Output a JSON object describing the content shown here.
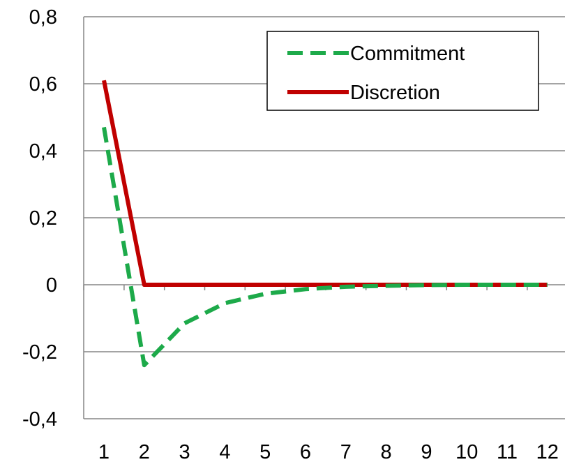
{
  "chart_data": {
    "type": "line",
    "title": "",
    "xlabel": "",
    "ylabel": "",
    "categories": [
      "1",
      "2",
      "3",
      "4",
      "5",
      "6",
      "7",
      "8",
      "9",
      "10",
      "11",
      "12"
    ],
    "x": [
      1,
      2,
      3,
      4,
      5,
      6,
      7,
      8,
      9,
      10,
      11,
      12
    ],
    "ylim": [
      -0.4,
      0.8
    ],
    "yticks": [
      -0.4,
      -0.2,
      0,
      0.2,
      0.4,
      0.6,
      0.8
    ],
    "ytick_labels": [
      "-0,4",
      "-0,2",
      "0",
      "0,2",
      "0,4",
      "0,6",
      "0,8"
    ],
    "grid": true,
    "legend_position": "top-right",
    "series": [
      {
        "name": "Commitment",
        "color": "#1daa4a",
        "style": "dashed",
        "values": [
          0.47,
          -0.24,
          -0.115,
          -0.055,
          -0.027,
          -0.013,
          -0.006,
          -0.003,
          -0.001,
          0,
          0,
          0
        ]
      },
      {
        "name": "Discretion",
        "color": "#c00000",
        "style": "solid",
        "values": [
          0.61,
          0,
          0,
          0,
          0,
          0,
          0,
          0,
          0,
          0,
          0,
          0
        ]
      }
    ]
  }
}
